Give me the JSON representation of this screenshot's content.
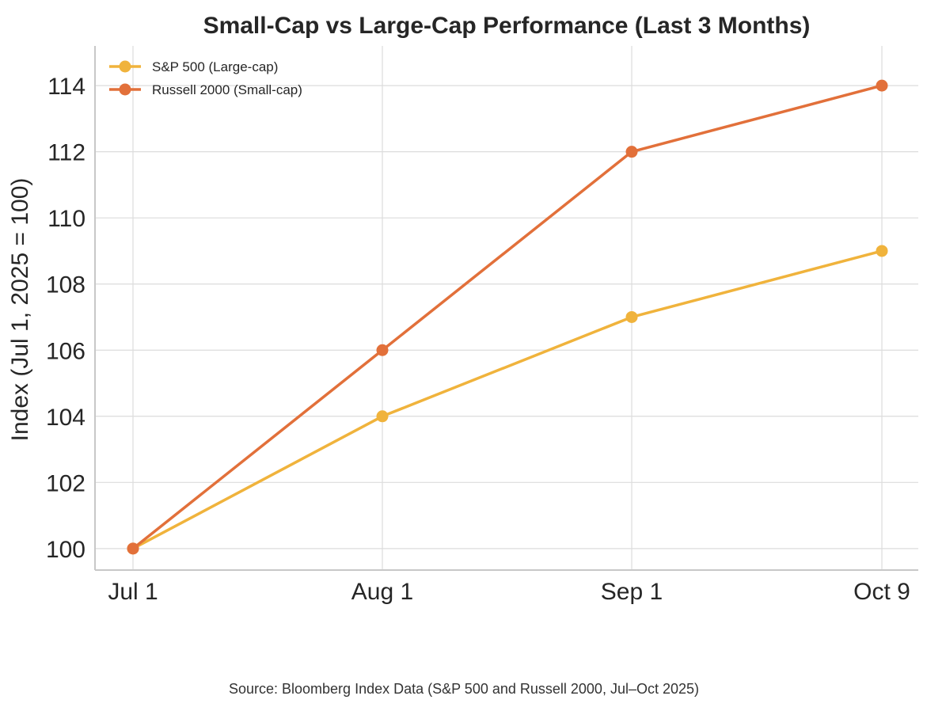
{
  "chart_data": {
    "type": "line",
    "title": "Small-Cap vs Large-Cap Performance (Last 3 Months)",
    "xlabel": "",
    "ylabel": "Index (Jul 1, 2025 = 100)",
    "categories": [
      "Jul 1",
      "Aug 1",
      "Sep 1",
      "Oct 9"
    ],
    "ylim": [
      99.35,
      115.2
    ],
    "yticks": [
      100,
      102,
      104,
      106,
      108,
      110,
      112,
      114
    ],
    "grid": true,
    "legend_position": "top-left",
    "series": [
      {
        "name": "S&P 500 (Large-cap)",
        "values": [
          100,
          104,
          107,
          109
        ],
        "color": "#f0b33c"
      },
      {
        "name": "Russell 2000 (Small-cap)",
        "values": [
          100,
          106,
          112,
          114
        ],
        "color": "#e2703a"
      }
    ],
    "source": "Source: Bloomberg Index Data (S&P 500 and Russell 2000, Jul–Oct 2025)"
  }
}
